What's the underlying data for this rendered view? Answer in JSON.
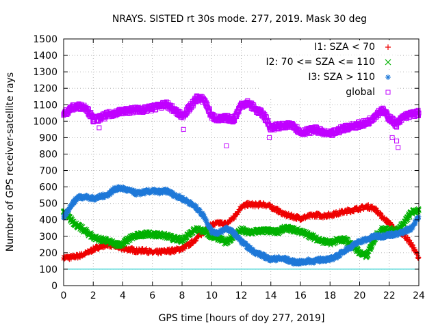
{
  "chart_data": {
    "type": "scatter",
    "title": "NRAYS. SISTED rt 30s mode. 277, 2019. Mask 30 deg",
    "xlabel": "GPS time [hours of doy 277, 2019]",
    "ylabel": "Number of GPS receiver-satellite rays",
    "xlim": [
      0,
      24
    ],
    "ylim": [
      0,
      1500
    ],
    "xticks": [
      "0",
      "2",
      "4",
      "6",
      "8",
      "10",
      "12",
      "14",
      "16",
      "18",
      "20",
      "22",
      "24"
    ],
    "yticks": [
      "0",
      "100",
      "200",
      "300",
      "400",
      "500",
      "600",
      "700",
      "800",
      "900",
      "1000",
      "1100",
      "1200",
      "1300",
      "1400",
      "1500"
    ],
    "grid": true,
    "legend_position": "top-right",
    "reference_line": {
      "y": 100,
      "color": "#00c8c8"
    },
    "series": [
      {
        "name": "I1: SZA < 70",
        "marker": "+",
        "color": "#ee0000",
        "x": [
          0,
          0.5,
          1,
          1.5,
          2,
          2.5,
          3,
          3.5,
          4,
          4.5,
          5,
          5.5,
          6,
          6.5,
          7,
          7.5,
          8,
          8.5,
          9,
          9.5,
          10,
          10.5,
          11,
          11.5,
          12,
          12.5,
          13,
          13.5,
          14,
          14.5,
          15,
          15.5,
          16,
          16.5,
          17,
          17.5,
          18,
          18.5,
          19,
          19.5,
          20,
          20.5,
          21,
          21.5,
          22,
          22.5,
          23,
          23.5,
          24
        ],
        "values": [
          170,
          172,
          180,
          195,
          220,
          240,
          250,
          238,
          225,
          220,
          210,
          215,
          200,
          205,
          210,
          215,
          225,
          250,
          290,
          330,
          370,
          380,
          375,
          415,
          480,
          495,
          490,
          495,
          480,
          455,
          430,
          420,
          410,
          420,
          430,
          425,
          430,
          440,
          450,
          460,
          470,
          480,
          470,
          420,
          380,
          330,
          310,
          250,
          170
        ]
      },
      {
        "name": "I2: 70 <= SZA <= 110",
        "marker": "x",
        "color": "#00b000",
        "x": [
          0,
          0.5,
          1,
          1.5,
          2,
          2.5,
          3,
          3.5,
          4,
          4.5,
          5,
          5.5,
          6,
          6.5,
          7,
          7.5,
          8,
          8.5,
          9,
          9.5,
          10,
          10.5,
          11,
          11.5,
          12,
          12.5,
          13,
          13.5,
          14,
          14.5,
          15,
          15.5,
          16,
          16.5,
          17,
          17.5,
          18,
          18.5,
          19,
          19.5,
          20,
          20.5,
          21,
          21.5,
          22,
          22.5,
          23,
          23.5,
          24
        ],
        "values": [
          450,
          400,
          360,
          330,
          295,
          280,
          270,
          250,
          255,
          290,
          305,
          315,
          310,
          310,
          300,
          285,
          275,
          320,
          345,
          330,
          300,
          290,
          260,
          305,
          340,
          320,
          330,
          335,
          330,
          330,
          350,
          340,
          330,
          310,
          290,
          270,
          260,
          275,
          280,
          250,
          200,
          180,
          290,
          340,
          340,
          330,
          380,
          445,
          460
        ]
      },
      {
        "name": "I3: SZA > 110",
        "marker": "*",
        "color": "#1e78d8",
        "x": [
          0,
          0.5,
          1,
          1.5,
          2,
          2.5,
          3,
          3.5,
          4,
          4.5,
          5,
          5.5,
          6,
          6.5,
          7,
          7.5,
          8,
          8.5,
          9,
          9.5,
          10,
          10.5,
          11,
          11.5,
          12,
          12.5,
          13,
          13.5,
          14,
          14.5,
          15,
          15.5,
          16,
          16.5,
          17,
          17.5,
          18,
          18.5,
          19,
          19.5,
          20,
          20.5,
          21,
          21.5,
          22,
          22.5,
          23,
          23.5,
          24
        ],
        "values": [
          410,
          490,
          540,
          540,
          530,
          540,
          555,
          590,
          590,
          575,
          560,
          570,
          575,
          570,
          575,
          550,
          530,
          505,
          470,
          420,
          330,
          320,
          350,
          320,
          270,
          230,
          200,
          180,
          160,
          165,
          160,
          145,
          140,
          150,
          150,
          160,
          160,
          180,
          215,
          240,
          270,
          280,
          300,
          300,
          310,
          310,
          330,
          350,
          420
        ]
      },
      {
        "name": "global",
        "marker": "square",
        "color": "#c000ff",
        "x": [
          0,
          0.5,
          1,
          1.5,
          2,
          2.5,
          3,
          3.5,
          4,
          4.5,
          5,
          5.5,
          6,
          6.5,
          7,
          7.5,
          8,
          8.5,
          9,
          9.5,
          10,
          10.5,
          11,
          11.5,
          12,
          12.5,
          13,
          13.5,
          14,
          14.5,
          15,
          15.5,
          16,
          16.5,
          17,
          17.5,
          18,
          18.5,
          19,
          19.5,
          20,
          20.5,
          21,
          21.5,
          22,
          22.5,
          23,
          23.5,
          24
        ],
        "values": [
          1040,
          1080,
          1090,
          1085,
          1010,
          1020,
          1040,
          1050,
          1060,
          1065,
          1070,
          1070,
          1080,
          1095,
          1100,
          1065,
          1030,
          1080,
          1140,
          1130,
          1030,
          1010,
          1020,
          1010,
          1100,
          1110,
          1070,
          1040,
          960,
          970,
          970,
          980,
          930,
          940,
          950,
          930,
          920,
          940,
          960,
          970,
          980,
          990,
          1030,
          1070,
          1020,
          980,
          1030,
          1040,
          1050
        ]
      }
    ]
  }
}
